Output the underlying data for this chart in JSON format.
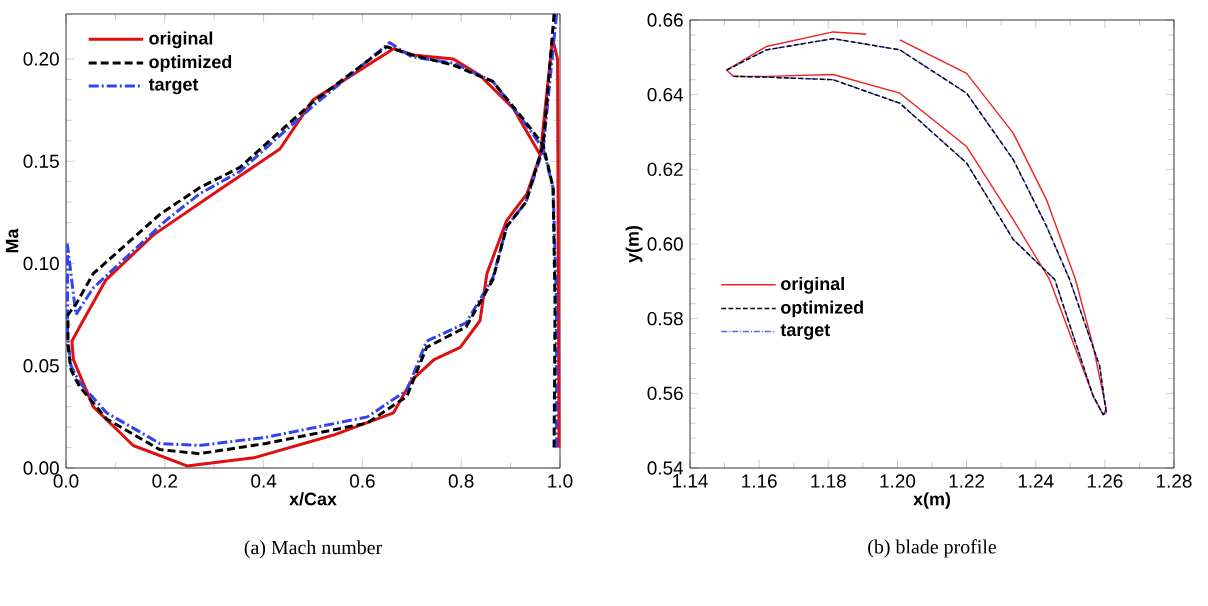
{
  "chart_data": [
    {
      "type": "line",
      "xlabel": "x/Cax",
      "ylabel": "Ma",
      "annotations": [
        "(a) Mach number"
      ],
      "legend": "top left",
      "grid": false,
      "xlim": [
        0,
        1
      ],
      "ylim": [
        0,
        0.222
      ],
      "xticks": [
        {
          "value": 0,
          "label": "0.0"
        },
        {
          "value": 0.2,
          "label": "0.2"
        },
        {
          "value": 0.4,
          "label": "0.4"
        },
        {
          "value": 0.6,
          "label": "0.6"
        },
        {
          "value": 0.8,
          "label": "0.8"
        },
        {
          "value": 1,
          "label": "1.0"
        }
      ],
      "yticks": [
        {
          "value": 0,
          "label": "0.00"
        },
        0.05,
        {
          "value": 0.1,
          "label": "0.10"
        },
        0.15,
        {
          "value": 0.2,
          "label": "0.20"
        }
      ],
      "series": [
        {
          "name": "original",
          "color": "#dd1111",
          "line_style": "solid",
          "x": [
            0.998,
            0.995,
            0.985,
            0.96,
            0.905,
            0.838,
            0.784,
            0.703,
            0.663,
            0.5,
            0.433,
            0.298,
            0.177,
            0.081,
            0.03,
            0.012,
            0.015,
            0.055,
            0.136,
            0.245,
            0.38,
            0.54,
            0.663,
            0.7,
            0.745,
            0.798,
            0.838,
            0.852,
            0.892,
            0.933,
            0.96,
            0.975
          ],
          "values": [
            0.01,
            0.2,
            0.21,
            0.153,
            0.176,
            0.192,
            0.2,
            0.202,
            0.205,
            0.18,
            0.156,
            0.134,
            0.114,
            0.092,
            0.07,
            0.062,
            0.053,
            0.03,
            0.011,
            0.001,
            0.005,
            0.016,
            0.027,
            0.043,
            0.053,
            0.059,
            0.072,
            0.095,
            0.121,
            0.134,
            0.153,
            0.18
          ]
        },
        {
          "name": "optimized",
          "color": "#000000",
          "line_style": "dashed",
          "x": [
            0.988,
            0.99,
            0.986,
            0.966,
            0.931,
            0.864,
            0.784,
            0.7,
            0.649,
            0.5,
            0.352,
            0.27,
            0.19,
            0.055,
            0.02,
            0.004,
            0.004,
            0.01,
            0.027,
            0.082,
            0.19,
            0.27,
            0.405,
            0.61,
            0.69,
            0.73,
            0.81,
            0.864,
            0.892,
            0.931,
            0.966,
            0.988
          ],
          "values": [
            0.01,
            0.08,
            0.137,
            0.158,
            0.169,
            0.189,
            0.197,
            0.202,
            0.206,
            0.179,
            0.147,
            0.137,
            0.124,
            0.095,
            0.08,
            0.075,
            0.06,
            0.048,
            0.04,
            0.024,
            0.009,
            0.007,
            0.012,
            0.022,
            0.035,
            0.059,
            0.069,
            0.092,
            0.118,
            0.13,
            0.158,
            0.222
          ]
        },
        {
          "name": "target",
          "color": "#3344ee",
          "line_style": "dashdot",
          "x": [
            0.993,
            0.993,
            0.986,
            0.966,
            0.931,
            0.864,
            0.784,
            0.7,
            0.655,
            0.5,
            0.352,
            0.27,
            0.202,
            0.055,
            0.02,
            0.003,
            0.003,
            0.01,
            0.027,
            0.082,
            0.19,
            0.27,
            0.405,
            0.61,
            0.69,
            0.73,
            0.81,
            0.864,
            0.892,
            0.931,
            0.966,
            0.993
          ],
          "values": [
            0.01,
            0.08,
            0.137,
            0.156,
            0.168,
            0.189,
            0.198,
            0.201,
            0.208,
            0.177,
            0.145,
            0.134,
            0.121,
            0.088,
            0.075,
            0.109,
            0.065,
            0.05,
            0.042,
            0.027,
            0.012,
            0.011,
            0.015,
            0.025,
            0.038,
            0.062,
            0.071,
            0.093,
            0.118,
            0.13,
            0.156,
            0.222
          ]
        }
      ]
    },
    {
      "type": "line",
      "xlabel": "x(m)",
      "ylabel": "y(m)",
      "annotations": [
        "(b) blade profile"
      ],
      "legend": "bottom left",
      "grid": false,
      "xlim": [
        1.14,
        1.28
      ],
      "ylim": [
        0.54,
        0.66
      ],
      "xticks": [
        1.14,
        1.16,
        1.18,
        {
          "value": 1.2,
          "label": "1.20"
        },
        1.22,
        1.24,
        1.26,
        1.28
      ],
      "yticks": [
        0.54,
        0.56,
        0.58,
        {
          "value": 0.6,
          "label": "0.60"
        },
        0.62,
        0.64,
        0.66
      ],
      "series": [
        {
          "name": "original",
          "color": "#ee2222",
          "line_style": "solid",
          "x": [
            1.2007,
            1.22,
            1.2335,
            1.2431,
            1.2515,
            1.2566,
            1.2604,
            1.2595,
            1.2566,
            1.244,
            1.2335,
            1.22,
            1.2007,
            1.1814,
            1.1621,
            1.1525,
            1.1506,
            1.1621,
            1.1814,
            1.191
          ],
          "values": [
            0.6547,
            0.6457,
            0.6297,
            0.6119,
            0.5905,
            0.5727,
            0.5557,
            0.5543,
            0.5593,
            0.5905,
            0.6065,
            0.6261,
            0.6404,
            0.6454,
            0.6449,
            0.6449,
            0.6466,
            0.6529,
            0.6568,
            0.6562
          ]
        },
        {
          "name": "optimized",
          "color": "#000000",
          "line_style": "dashed",
          "x": [
            1.1506,
            1.1621,
            1.1814,
            1.2007,
            1.22,
            1.2335,
            1.2431,
            1.2498,
            1.2585,
            1.2604,
            1.2595,
            1.2566,
            1.2455,
            1.2335,
            1.22,
            1.2007,
            1.1814,
            1.1621,
            1.1525
          ],
          "values": [
            0.6466,
            0.652,
            0.655,
            0.652,
            0.6404,
            0.6226,
            0.6048,
            0.5905,
            0.5673,
            0.5548,
            0.5543,
            0.5593,
            0.5905,
            0.6012,
            0.6217,
            0.6377,
            0.644,
            0.6447,
            0.6449
          ]
        },
        {
          "name": "target",
          "color": "#5566ff",
          "line_style": "dashdot",
          "x": [
            1.1506,
            1.1621,
            1.1814,
            1.2007,
            1.22,
            1.2335,
            1.2431,
            1.2498,
            1.2585,
            1.2604,
            1.2595,
            1.2566,
            1.2455,
            1.2335,
            1.22,
            1.2007,
            1.1814,
            1.1621,
            1.1525
          ],
          "values": [
            0.6466,
            0.652,
            0.655,
            0.652,
            0.6404,
            0.6226,
            0.6048,
            0.5905,
            0.5673,
            0.5548,
            0.5543,
            0.5593,
            0.5905,
            0.6012,
            0.6217,
            0.6377,
            0.644,
            0.6447,
            0.6449
          ]
        }
      ]
    }
  ]
}
